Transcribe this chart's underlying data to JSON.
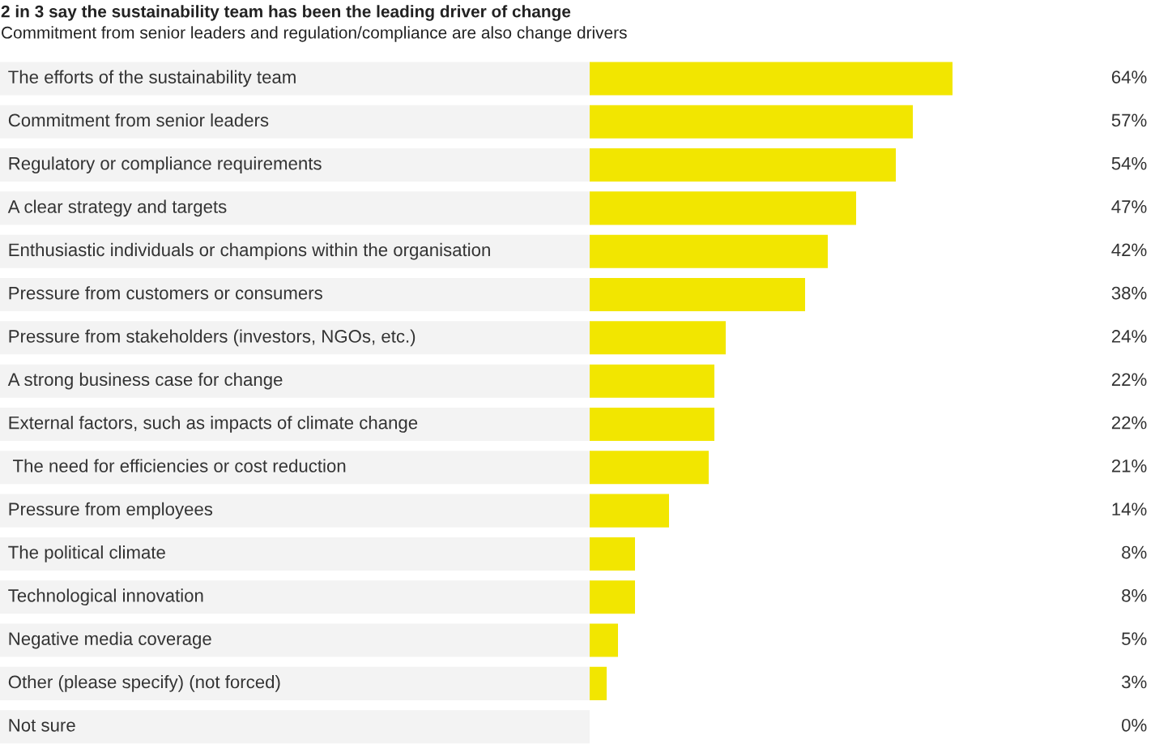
{
  "chart_data": {
    "type": "bar",
    "orientation": "horizontal",
    "title": "2 in 3 say the sustainability team has been the leading driver of change",
    "subtitle": "Commitment from senior leaders and regulation/compliance are also change drivers",
    "categories": [
      "The efforts of the sustainability team",
      "Commitment from senior leaders",
      "Regulatory or compliance requirements",
      "A clear strategy and targets",
      "Enthusiastic individuals or champions within the organisation",
      "Pressure from customers or consumers",
      "Pressure from stakeholders (investors, NGOs, etc.)",
      "A strong business case for change",
      "External factors, such as impacts of climate change",
      " The need for efficiencies or cost reduction",
      "Pressure from employees",
      "The political climate",
      "Technological innovation",
      "Negative media coverage",
      "Other (please specify) (not forced)",
      "Not sure"
    ],
    "values": [
      64,
      57,
      54,
      47,
      42,
      38,
      24,
      22,
      22,
      21,
      14,
      8,
      8,
      5,
      3,
      0
    ],
    "value_labels": [
      "64%",
      "57%",
      "54%",
      "47%",
      "42%",
      "38%",
      "24%",
      "22%",
      "22%",
      "21%",
      "14%",
      "8%",
      "8%",
      "5%",
      "3%",
      "0%"
    ],
    "color": "#f2e600"
  }
}
